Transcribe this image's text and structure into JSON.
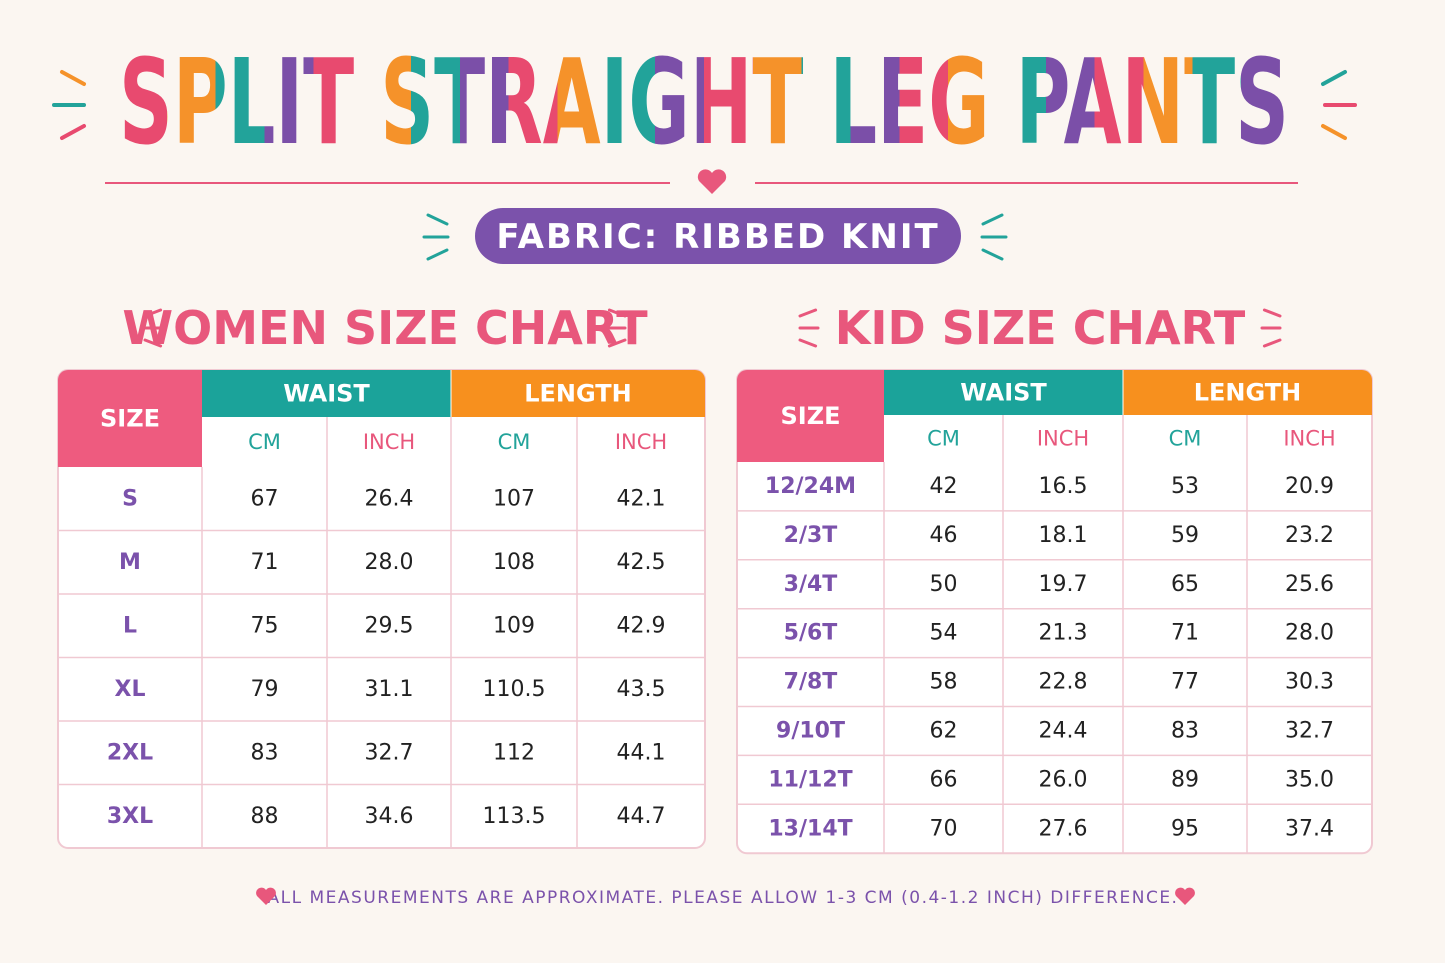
{
  "header": {
    "title": "SPLIT STRAIGHT LEG PANTS",
    "fabric": "FABRIC: RIBBED KNIT"
  },
  "tables": [
    {
      "title": "WOMEN SIZE CHART",
      "size_header": "SIZE",
      "groups": [
        "WAIST",
        "LENGTH"
      ],
      "units": [
        "CM",
        "INCH",
        "CM",
        "INCH"
      ],
      "rows": [
        [
          "S",
          "67",
          "26.4",
          "107",
          "42.1"
        ],
        [
          "M",
          "71",
          "28.0",
          "108",
          "42.5"
        ],
        [
          "L",
          "75",
          "29.5",
          "109",
          "42.9"
        ],
        [
          "XL",
          "79",
          "31.1",
          "110.5",
          "43.5"
        ],
        [
          "2XL",
          "83",
          "32.7",
          "112",
          "44.1"
        ],
        [
          "3XL",
          "88",
          "34.6",
          "113.5",
          "44.7"
        ]
      ]
    },
    {
      "title": "KID SIZE CHART",
      "size_header": "SIZE",
      "groups": [
        "WAIST",
        "LENGTH"
      ],
      "units": [
        "CM",
        "INCH",
        "CM",
        "INCH"
      ],
      "rows": [
        [
          "12/24M",
          "42",
          "16.5",
          "53",
          "20.9"
        ],
        [
          "2/3T",
          "46",
          "18.1",
          "59",
          "23.2"
        ],
        [
          "3/4T",
          "50",
          "19.7",
          "65",
          "25.6"
        ],
        [
          "5/6T",
          "54",
          "21.3",
          "71",
          "28.0"
        ],
        [
          "7/8T",
          "58",
          "22.8",
          "77",
          "30.3"
        ],
        [
          "9/10T",
          "62",
          "24.4",
          "83",
          "32.7"
        ],
        [
          "11/12T",
          "66",
          "26.0",
          "89",
          "35.0"
        ],
        [
          "13/14T",
          "70",
          "27.6",
          "95",
          "37.4"
        ]
      ]
    }
  ],
  "footer": "ALL MEASUREMENTS ARE APPROXIMATE. PLEASE ALLOW 1-3 CM (0.4-1.2 INCH) DIFFERENCE."
}
